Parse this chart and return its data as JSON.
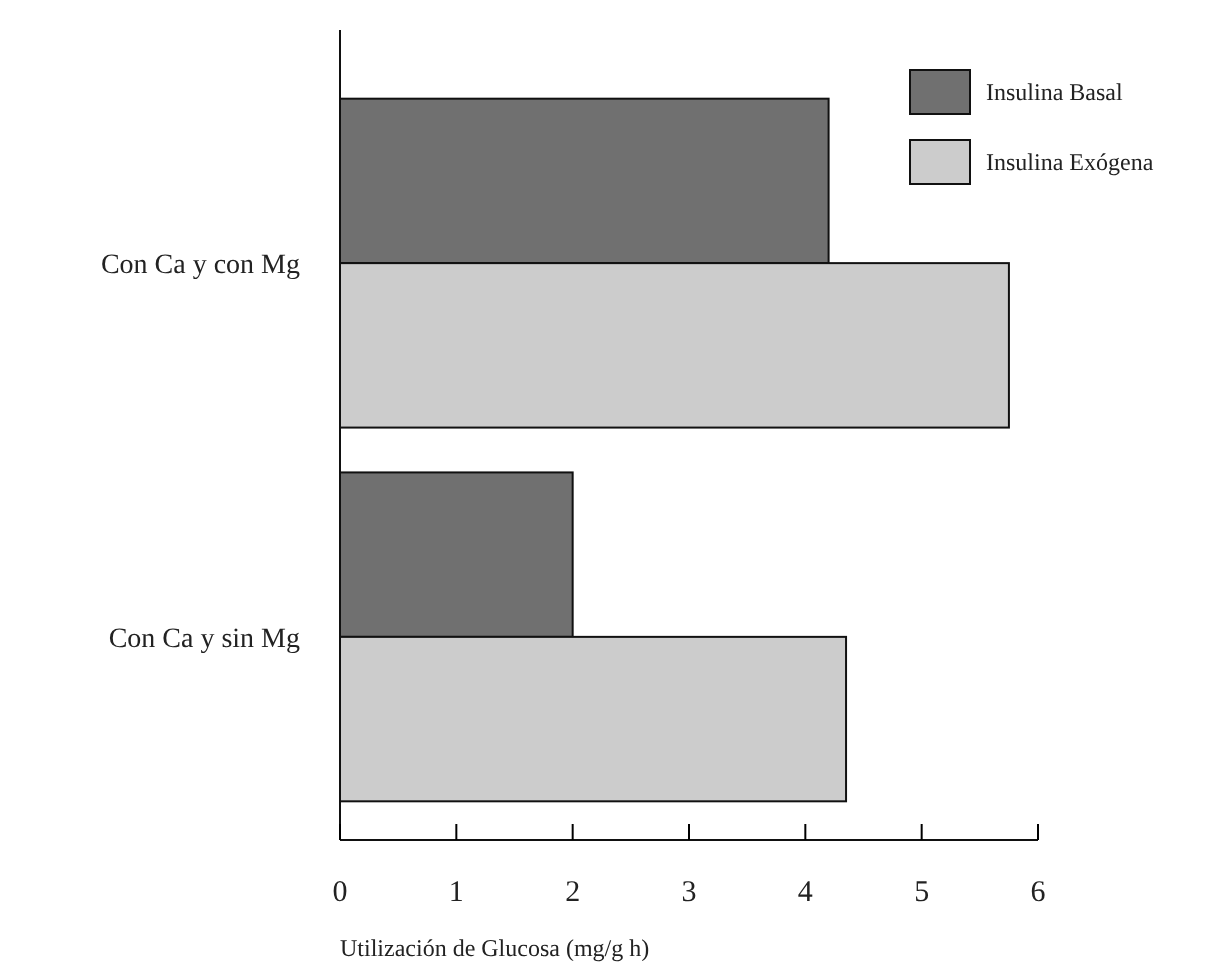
{
  "chart_data": {
    "type": "bar",
    "orientation": "horizontal",
    "categories": [
      "Con Ca y con Mg",
      "Con Ca y sin Mg"
    ],
    "series": [
      {
        "name": "Insulina Basal",
        "color": "#707070",
        "values": [
          4.2,
          2.0
        ]
      },
      {
        "name": "Insulina Exógena",
        "color": "#cccccc",
        "values": [
          5.75,
          4.35
        ]
      }
    ],
    "xlim": [
      0,
      6
    ],
    "xticks": [
      0,
      1,
      2,
      3,
      4,
      5,
      6
    ],
    "xlabel": "Utilización de Glucosa (mg/g h)",
    "legend": "top right",
    "grid": false
  }
}
